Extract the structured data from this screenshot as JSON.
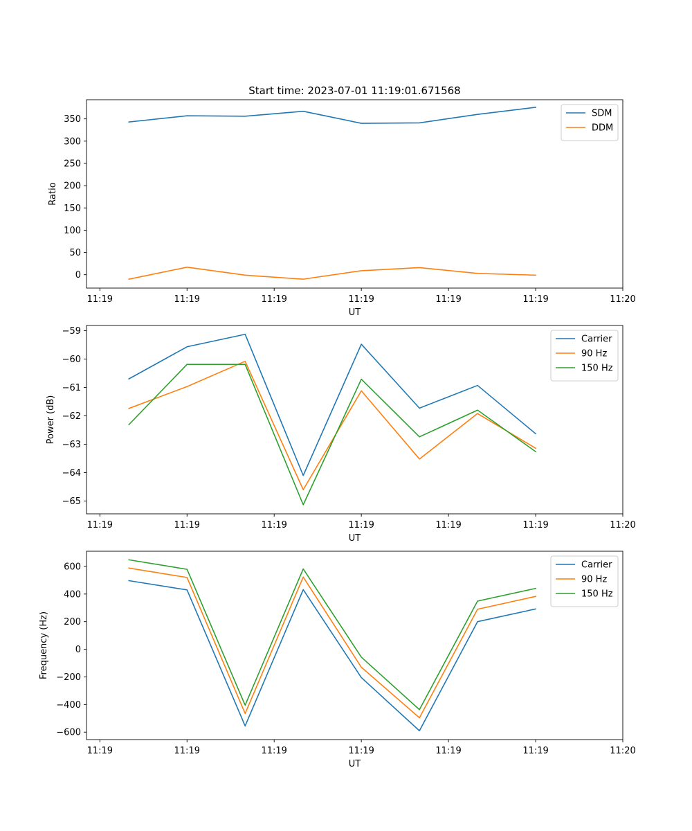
{
  "chart_data": [
    {
      "type": "line",
      "title": "Start time: 2023-07-01 11:19:01.671568",
      "xlabel": "UT",
      "ylabel": "Ratio",
      "xlim": [
        -0.23,
        9.0
      ],
      "ylim": [
        -30,
        393
      ],
      "x": [
        0.5,
        1.5,
        2.5,
        3.5,
        4.5,
        5.5,
        6.5,
        7.5
      ],
      "x_ticks": [
        0,
        1.5,
        3,
        4.5,
        6,
        7.5,
        9
      ],
      "x_tick_labels": [
        "11:19",
        "11:19",
        "11:19",
        "11:19",
        "11:19",
        "11:19",
        "11:20"
      ],
      "y_ticks": [
        0,
        50,
        100,
        150,
        200,
        250,
        300,
        350
      ],
      "y_tick_labels": [
        "0",
        "50",
        "100",
        "150",
        "200",
        "250",
        "300",
        "350"
      ],
      "legend_position": "upper right",
      "series": [
        {
          "name": "SDM",
          "color": "#1f77b4",
          "values": [
            343,
            357,
            356,
            367,
            340,
            341,
            360,
            376
          ]
        },
        {
          "name": "DDM",
          "color": "#ff7f0e",
          "values": [
            -10,
            17,
            -1,
            -10,
            9,
            16,
            3,
            -1
          ]
        }
      ]
    },
    {
      "type": "line",
      "title": "",
      "xlabel": "UT",
      "ylabel": "Power (dB)",
      "xlim": [
        -0.23,
        9.0
      ],
      "ylim": [
        -65.45,
        -58.82
      ],
      "x": [
        0.5,
        1.5,
        2.5,
        3.5,
        4.5,
        5.5,
        6.5,
        7.5
      ],
      "x_ticks": [
        0,
        1.5,
        3,
        4.5,
        6,
        7.5,
        9
      ],
      "x_tick_labels": [
        "11:19",
        "11:19",
        "11:19",
        "11:19",
        "11:19",
        "11:19",
        "11:20"
      ],
      "y_ticks": [
        -65,
        -64,
        -63,
        -62,
        -61,
        -60,
        -59
      ],
      "y_tick_labels": [
        "−65",
        "−64",
        "−63",
        "−62",
        "−61",
        "−60",
        "−59"
      ],
      "legend_position": "upper right",
      "series": [
        {
          "name": "Carrier",
          "color": "#1f77b4",
          "values": [
            -60.7,
            -59.57,
            -59.13,
            -64.1,
            -59.48,
            -61.73,
            -60.93,
            -62.63
          ]
        },
        {
          "name": "90 Hz",
          "color": "#ff7f0e",
          "values": [
            -61.74,
            -60.97,
            -60.08,
            -64.6,
            -61.12,
            -63.52,
            -61.92,
            -63.14
          ]
        },
        {
          "name": "150 Hz",
          "color": "#2ca02c",
          "values": [
            -62.31,
            -60.19,
            -60.19,
            -65.13,
            -60.71,
            -62.74,
            -61.8,
            -63.26
          ]
        }
      ]
    },
    {
      "type": "line",
      "title": "",
      "xlabel": "UT",
      "ylabel": "Frequency (Hz)",
      "xlim": [
        -0.23,
        9.0
      ],
      "ylim": [
        -654,
        710
      ],
      "x": [
        0.5,
        1.5,
        2.5,
        3.5,
        4.5,
        5.5,
        6.5,
        7.5
      ],
      "x_ticks": [
        0,
        1.5,
        3,
        4.5,
        6,
        7.5,
        9
      ],
      "x_tick_labels": [
        "11:19",
        "11:19",
        "11:19",
        "11:19",
        "11:19",
        "11:19",
        "11:20"
      ],
      "y_ticks": [
        -600,
        -400,
        -200,
        0,
        200,
        400,
        600
      ],
      "y_tick_labels": [
        "−600",
        "−400",
        "−200",
        "0",
        "200",
        "400",
        "600"
      ],
      "legend_position": "upper right",
      "series": [
        {
          "name": "Carrier",
          "color": "#1f77b4",
          "values": [
            497,
            430,
            -555,
            432,
            -205,
            -590,
            200,
            292
          ]
        },
        {
          "name": "90 Hz",
          "color": "#ff7f0e",
          "values": [
            588,
            520,
            -465,
            523,
            -130,
            -496,
            290,
            383
          ]
        },
        {
          "name": "150 Hz",
          "color": "#2ca02c",
          "values": [
            648,
            579,
            -405,
            582,
            -57,
            -437,
            349,
            441
          ]
        }
      ]
    }
  ]
}
